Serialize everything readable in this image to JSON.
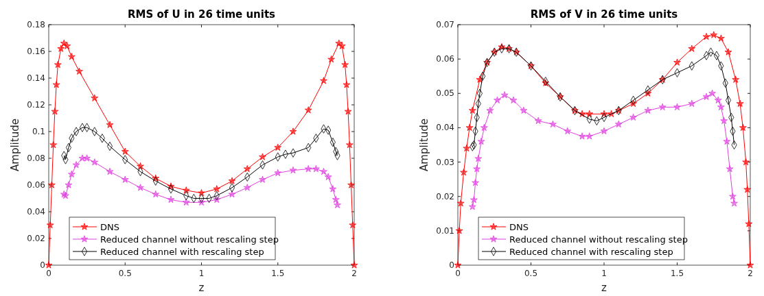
{
  "chart_data": [
    {
      "type": "line",
      "title": "RMS of U in 26 time units",
      "xlabel": "z",
      "ylabel": "Amplitude",
      "xlim": [
        0,
        2
      ],
      "xticks": [
        0,
        0.5,
        1,
        1.5,
        2
      ],
      "ylim": [
        0,
        0.18
      ],
      "yticks": [
        0,
        0.02,
        0.04,
        0.06,
        0.08,
        0.1,
        0.12,
        0.14,
        0.16,
        0.18
      ],
      "grid": false,
      "legend": "bottom",
      "line_style": "solid",
      "series": [
        {
          "name": "DNS",
          "color": "#ff0000",
          "marker": "star",
          "x": [
            0,
            0.01,
            0.02,
            0.03,
            0.04,
            0.05,
            0.06,
            0.08,
            0.1,
            0.12,
            0.15,
            0.2,
            0.3,
            0.4,
            0.5,
            0.6,
            0.7,
            0.8,
            0.9,
            1.0,
            1.1,
            1.2,
            1.3,
            1.4,
            1.5,
            1.6,
            1.7,
            1.8,
            1.85,
            1.9,
            1.92,
            1.94,
            1.95,
            1.96,
            1.97,
            1.98,
            1.99,
            2.0
          ],
          "values": [
            0,
            0.03,
            0.06,
            0.09,
            0.115,
            0.135,
            0.15,
            0.162,
            0.166,
            0.164,
            0.156,
            0.145,
            0.125,
            0.105,
            0.085,
            0.074,
            0.065,
            0.059,
            0.056,
            0.054,
            0.057,
            0.063,
            0.072,
            0.081,
            0.088,
            0.1,
            0.116,
            0.138,
            0.154,
            0.166,
            0.164,
            0.15,
            0.135,
            0.115,
            0.09,
            0.06,
            0.03,
            0
          ]
        },
        {
          "name": "Reduced channel without rescaling step",
          "color": "#e040e0",
          "marker": "star",
          "x": [
            0.1,
            0.11,
            0.13,
            0.15,
            0.18,
            0.22,
            0.25,
            0.3,
            0.4,
            0.5,
            0.6,
            0.7,
            0.8,
            0.9,
            1.0,
            1.1,
            1.2,
            1.3,
            1.4,
            1.5,
            1.6,
            1.7,
            1.75,
            1.8,
            1.83,
            1.86,
            1.88,
            1.89
          ],
          "values": [
            0.053,
            0.052,
            0.06,
            0.068,
            0.075,
            0.08,
            0.08,
            0.077,
            0.07,
            0.064,
            0.058,
            0.053,
            0.049,
            0.047,
            0.047,
            0.049,
            0.053,
            0.058,
            0.064,
            0.069,
            0.071,
            0.072,
            0.072,
            0.07,
            0.066,
            0.057,
            0.049,
            0.045
          ]
        },
        {
          "name": "Reduced channel with rescaling step",
          "color": "#000000",
          "marker": "diamond",
          "x": [
            0.1,
            0.11,
            0.13,
            0.15,
            0.18,
            0.22,
            0.25,
            0.3,
            0.35,
            0.4,
            0.5,
            0.6,
            0.7,
            0.8,
            0.9,
            0.95,
            1.0,
            1.05,
            1.1,
            1.2,
            1.3,
            1.4,
            1.5,
            1.55,
            1.6,
            1.7,
            1.75,
            1.8,
            1.83,
            1.86,
            1.88,
            1.89
          ],
          "values": [
            0.082,
            0.079,
            0.088,
            0.095,
            0.1,
            0.103,
            0.103,
            0.1,
            0.095,
            0.089,
            0.079,
            0.07,
            0.063,
            0.057,
            0.052,
            0.05,
            0.05,
            0.05,
            0.052,
            0.058,
            0.066,
            0.075,
            0.081,
            0.083,
            0.084,
            0.088,
            0.095,
            0.102,
            0.101,
            0.092,
            0.085,
            0.082
          ]
        }
      ]
    },
    {
      "type": "line",
      "title": "RMS of V in 26 time units",
      "xlabel": "z",
      "ylabel": "Amplitude",
      "xlim": [
        0,
        2
      ],
      "xticks": [
        0,
        0.5,
        1,
        1.5,
        2
      ],
      "ylim": [
        0,
        0.07
      ],
      "yticks": [
        0,
        0.01,
        0.02,
        0.03,
        0.04,
        0.05,
        0.06,
        0.07
      ],
      "grid": false,
      "legend": "bottom",
      "line_style": "solid",
      "series": [
        {
          "name": "DNS",
          "color": "#ff0000",
          "marker": "star",
          "x": [
            0,
            0.01,
            0.02,
            0.04,
            0.06,
            0.08,
            0.1,
            0.15,
            0.2,
            0.25,
            0.3,
            0.35,
            0.4,
            0.5,
            0.6,
            0.7,
            0.8,
            0.85,
            0.9,
            1.0,
            1.05,
            1.1,
            1.2,
            1.3,
            1.4,
            1.5,
            1.6,
            1.7,
            1.75,
            1.8,
            1.85,
            1.9,
            1.93,
            1.95,
            1.97,
            1.98,
            1.99,
            2.0
          ],
          "values": [
            0,
            0.01,
            0.018,
            0.027,
            0.034,
            0.04,
            0.045,
            0.054,
            0.059,
            0.062,
            0.0635,
            0.063,
            0.062,
            0.058,
            0.053,
            0.049,
            0.045,
            0.044,
            0.044,
            0.044,
            0.044,
            0.045,
            0.047,
            0.05,
            0.054,
            0.059,
            0.063,
            0.0665,
            0.067,
            0.066,
            0.062,
            0.054,
            0.047,
            0.04,
            0.03,
            0.022,
            0.012,
            0
          ]
        },
        {
          "name": "Reduced channel without rescaling step",
          "color": "#e040e0",
          "marker": "star",
          "x": [
            0.1,
            0.11,
            0.12,
            0.13,
            0.14,
            0.16,
            0.18,
            0.22,
            0.27,
            0.32,
            0.38,
            0.45,
            0.55,
            0.65,
            0.75,
            0.85,
            0.9,
            1.0,
            1.1,
            1.2,
            1.3,
            1.4,
            1.5,
            1.6,
            1.7,
            1.74,
            1.78,
            1.8,
            1.82,
            1.84,
            1.86,
            1.88,
            1.89
          ],
          "values": [
            0.017,
            0.019,
            0.024,
            0.028,
            0.031,
            0.036,
            0.04,
            0.045,
            0.048,
            0.0495,
            0.048,
            0.045,
            0.042,
            0.041,
            0.039,
            0.0375,
            0.0375,
            0.039,
            0.041,
            0.043,
            0.045,
            0.046,
            0.046,
            0.047,
            0.049,
            0.05,
            0.048,
            0.046,
            0.042,
            0.036,
            0.028,
            0.02,
            0.018
          ]
        },
        {
          "name": "Reduced channel with rescaling step",
          "color": "#000000",
          "marker": "diamond",
          "x": [
            0.1,
            0.11,
            0.12,
            0.13,
            0.14,
            0.15,
            0.17,
            0.2,
            0.25,
            0.3,
            0.35,
            0.4,
            0.5,
            0.6,
            0.7,
            0.8,
            0.9,
            0.95,
            1.0,
            1.1,
            1.2,
            1.3,
            1.4,
            1.5,
            1.6,
            1.7,
            1.73,
            1.77,
            1.8,
            1.83,
            1.85,
            1.87,
            1.88,
            1.89
          ],
          "values": [
            0.0345,
            0.035,
            0.039,
            0.043,
            0.047,
            0.05,
            0.055,
            0.059,
            0.062,
            0.063,
            0.063,
            0.062,
            0.058,
            0.0535,
            0.049,
            0.045,
            0.0425,
            0.042,
            0.043,
            0.045,
            0.048,
            0.051,
            0.054,
            0.056,
            0.058,
            0.061,
            0.062,
            0.061,
            0.058,
            0.053,
            0.048,
            0.043,
            0.039,
            0.035
          ]
        }
      ]
    }
  ]
}
